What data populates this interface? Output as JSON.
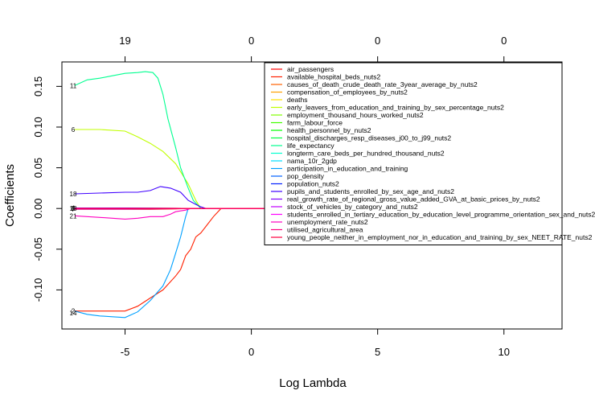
{
  "chart_data": {
    "type": "line",
    "xlabel": "Log Lambda",
    "ylabel": "Coefficients",
    "xlim": [
      -7.5,
      12.3
    ],
    "ylim": [
      -0.148,
      0.18
    ],
    "x_ticks": [
      -5,
      0,
      5,
      10
    ],
    "x_tick_labels": [
      "-5",
      "0",
      "5",
      "10"
    ],
    "y_ticks": [
      -0.1,
      -0.05,
      0.0,
      0.05,
      0.1,
      0.15
    ],
    "y_tick_labels": [
      "-0.10",
      "-0.05",
      "0.00",
      "0.05",
      "0.10",
      "0.15"
    ],
    "top_axis_ticks": [
      -5,
      0,
      5,
      10
    ],
    "top_axis_labels": [
      "19",
      "0",
      "0",
      "0"
    ],
    "legend_position": "top-right",
    "series": [
      {
        "name": "air_passengers",
        "color": "#FF0000",
        "x": [
          -7,
          -6,
          -5,
          -4,
          -3,
          -2.5,
          -2
        ],
        "y": [
          -0.001,
          -0.001,
          -0.001,
          -0.001,
          -0.0005,
          0,
          0
        ]
      },
      {
        "name": "available_hospital_beds_nuts2",
        "color": "#FF2000",
        "x": [
          -7,
          -6,
          -5,
          -4.5,
          -4,
          -3.5,
          -3,
          -2.8,
          -2.6,
          -2.4,
          -2.2,
          -2,
          -1.5,
          -1.2
        ],
        "y": [
          -0.126,
          -0.126,
          -0.126,
          -0.12,
          -0.11,
          -0.1,
          -0.083,
          -0.075,
          -0.058,
          -0.05,
          -0.035,
          -0.03,
          -0.01,
          0
        ]
      },
      {
        "name": "causes_of_death_crude_death_rate_3year_average_by_nuts2",
        "color": "#FF6000",
        "x": [
          -7,
          -5,
          -3,
          -2.5
        ],
        "y": [
          0.0005,
          0.0005,
          0.0003,
          0
        ]
      },
      {
        "name": "compensation_of_employees_by_nuts2",
        "color": "#FFA000",
        "x": [
          -7,
          -5,
          -3,
          -2.5
        ],
        "y": [
          0.0002,
          0.0002,
          0.0001,
          0
        ]
      },
      {
        "name": "deaths",
        "color": "#FFE000",
        "x": [
          -7,
          -5,
          -3,
          -2.5
        ],
        "y": [
          0.0003,
          0.0003,
          0.0002,
          0
        ]
      },
      {
        "name": "early_leavers_from_education_and_training_by_sex_percentage_nuts2",
        "color": "#C0FF00",
        "x": [
          -7,
          -6,
          -5,
          -4.5,
          -4,
          -3.5,
          -3,
          -2.5,
          -2.2,
          -2
        ],
        "y": [
          0.097,
          0.097,
          0.095,
          0.088,
          0.08,
          0.07,
          0.055,
          0.03,
          0.01,
          0
        ]
      },
      {
        "name": "employment_thousand_hours_worked_nuts2",
        "color": "#80FF00",
        "x": [
          -7,
          -5,
          -3,
          -2.5
        ],
        "y": [
          -0.0003,
          -0.0003,
          -0.0002,
          0
        ]
      },
      {
        "name": "farm_labour_force",
        "color": "#40FF00",
        "x": [
          -7,
          -5,
          -3,
          -2.5
        ],
        "y": [
          0.0004,
          0.0004,
          0.0002,
          0
        ]
      },
      {
        "name": "health_personnel_by_nuts2",
        "color": "#00FF00",
        "x": [
          -7,
          -5,
          -3,
          -2.5
        ],
        "y": [
          -0.0002,
          -0.0002,
          -0.0001,
          0
        ]
      },
      {
        "name": "hospital_discharges_resp_diseases_j00_to_j99_nuts2",
        "color": "#00FF40",
        "x": [
          -7,
          -5,
          -3,
          -2.5
        ],
        "y": [
          0.0001,
          0.0001,
          0.0001,
          0
        ]
      },
      {
        "name": "life_expectancy",
        "color": "#00FF90",
        "x": [
          -7,
          -6.5,
          -6,
          -5.5,
          -5,
          -4.5,
          -4.2,
          -3.9,
          -3.7,
          -3.5,
          -3.3,
          -3,
          -2.8,
          -2.5,
          -2.3,
          -2
        ],
        "y": [
          0.151,
          0.158,
          0.16,
          0.163,
          0.166,
          0.167,
          0.168,
          0.167,
          0.16,
          0.14,
          0.11,
          0.075,
          0.05,
          0.025,
          0.01,
          0
        ]
      },
      {
        "name": "longterm_care_beds_per_hundred_thousand_nuts2",
        "color": "#00FFD0",
        "x": [
          -7,
          -5,
          -3,
          -2.5
        ],
        "y": [
          -0.0004,
          -0.0004,
          -0.0002,
          0
        ]
      },
      {
        "name": "nama_10r_2gdp",
        "color": "#00E0FF",
        "x": [
          -7,
          -5,
          -3,
          -2.5
        ],
        "y": [
          0.0002,
          0.0002,
          0.0001,
          0
        ]
      },
      {
        "name": "participation_in_education_and_training",
        "color": "#00A0FF",
        "x": [
          -7,
          -6.5,
          -6,
          -5.5,
          -5,
          -4.5,
          -4,
          -3.5,
          -3.2,
          -3,
          -2.8,
          -2.6,
          -2.5
        ],
        "y": [
          -0.126,
          -0.13,
          -0.132,
          -0.133,
          -0.134,
          -0.127,
          -0.113,
          -0.095,
          -0.075,
          -0.055,
          -0.035,
          -0.01,
          0
        ]
      },
      {
        "name": "pop_density",
        "color": "#0060FF",
        "x": [
          -7,
          -5,
          -3,
          -2.5
        ],
        "y": [
          -0.0001,
          -0.0001,
          0,
          0
        ]
      },
      {
        "name": "population_nuts2",
        "color": "#0020FF",
        "x": [
          -7,
          -5,
          -3,
          -2.5
        ],
        "y": [
          0.0003,
          0.0003,
          0.0002,
          0
        ]
      },
      {
        "name": "pupils_and_students_enrolled_by_sex_age_and_nuts2",
        "color": "#4000FF",
        "x": [
          -7,
          -6,
          -5,
          -4.5,
          -4,
          -3.6,
          -3.2,
          -2.8,
          -2.5,
          -2.2,
          -2,
          -1.8
        ],
        "y": [
          0.018,
          0.019,
          0.02,
          0.02,
          0.022,
          0.027,
          0.025,
          0.02,
          0.01,
          0.005,
          0.002,
          0
        ]
      },
      {
        "name": "real_growth_rate_of_regional_gross_value_added_GVA_at_basic_prices_by_nuts2",
        "color": "#8000FF",
        "x": [
          -7,
          -5,
          -3,
          -2.5
        ],
        "y": [
          0.0006,
          0.0006,
          0.0003,
          0
        ]
      },
      {
        "name": "stock_of_vehicles_by_category_and_nuts2",
        "color": "#C000FF",
        "x": [
          -7,
          -5,
          -3,
          -2.5
        ],
        "y": [
          -0.0006,
          -0.0006,
          -0.0003,
          0
        ]
      },
      {
        "name": "students_enrolled_in_tertiary_education_by_education_level_programme_orientation_sex_and_nuts2",
        "color": "#FF00FF",
        "x": [
          -7,
          -5,
          -3,
          -2.5
        ],
        "y": [
          0.0002,
          0.0002,
          0.0001,
          0
        ]
      },
      {
        "name": "unemployment_rate_nuts2",
        "color": "#FF00C0",
        "x": [
          -7,
          -6.5,
          -6,
          -5.5,
          -5,
          -4.5,
          -4,
          -3.5,
          -3.2,
          -3,
          -2.8,
          -2.6,
          -2.4
        ],
        "y": [
          -0.009,
          -0.01,
          -0.011,
          -0.012,
          -0.013,
          -0.012,
          -0.01,
          -0.01,
          -0.007,
          -0.004,
          -0.003,
          -0.002,
          0
        ]
      },
      {
        "name": "utilised_agricultural_area",
        "color": "#FF0080",
        "x": [
          -7,
          -5,
          -3,
          -2.5
        ],
        "y": [
          -0.0002,
          -0.0002,
          -0.0001,
          0
        ]
      },
      {
        "name": "young_people_neither_in_employment_nor_in_education_and_training_by_sex_NEET_RATE_nuts2",
        "color": "#FF0040",
        "x": [
          -7,
          -5,
          -3,
          -2.5
        ],
        "y": [
          0.0001,
          0.0001,
          0,
          0
        ]
      }
    ],
    "left_labels": [
      {
        "text": "11",
        "y": 0.151
      },
      {
        "text": "6",
        "y": 0.097
      },
      {
        "text": "18",
        "y": 0.018
      },
      {
        "text": "21",
        "y": -0.009
      },
      {
        "text": "2",
        "y": -0.126
      },
      {
        "text": "14",
        "y": -0.128
      },
      {
        "text": "4",
        "y": 0.0009
      },
      {
        "text": "3",
        "y": 0.0004
      },
      {
        "text": "7",
        "y": -0.0006
      },
      {
        "text": "13",
        "y": 0.0002
      }
    ]
  }
}
